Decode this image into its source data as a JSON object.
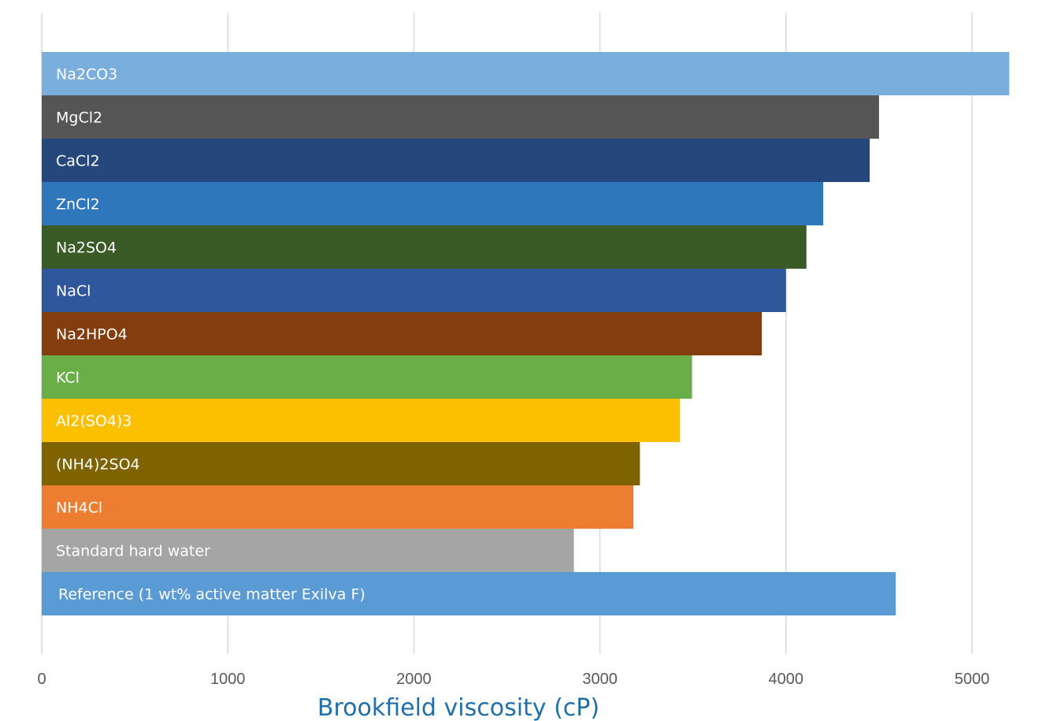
{
  "chart_data": {
    "type": "bar",
    "orientation": "horizontal",
    "title": "",
    "xlabel": "Brookfield viscosity (cP)",
    "ylabel": "",
    "xlim": [
      0,
      5200
    ],
    "xticks": [
      0,
      1000,
      2000,
      3000,
      4000,
      5000
    ],
    "grid": true,
    "legend": "none",
    "categories": [
      "Na2CO3",
      "MgCl2",
      "CaCl2",
      "ZnCl2",
      "Na2SO4",
      "NaCl",
      "Na2HPO4",
      "KCl",
      "Al2(SO4)3",
      "(NH4)2SO4",
      "NH4Cl",
      "Standard hard water",
      "Reference (1 wt% active matter Exilva F)"
    ],
    "values": [
      5200,
      4500,
      4450,
      4200,
      4110,
      4000,
      3870,
      3495,
      3430,
      3215,
      3180,
      2860,
      4590
    ],
    "colors": [
      "#7aaedd",
      "#555555",
      "#26477b",
      "#2f77bb",
      "#3a5a26",
      "#2f579b",
      "#843d0f",
      "#6aae48",
      "#fdc000",
      "#7f6300",
      "#ed7d31",
      "#a5a5a5",
      "#5b9bd5"
    ]
  }
}
